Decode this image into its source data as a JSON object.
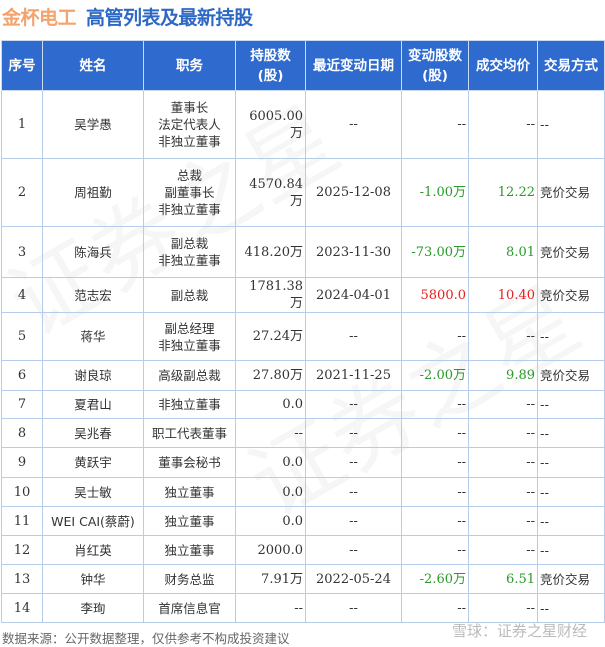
{
  "title": {
    "company": "金杯电工",
    "subject": "高管列表及最新持股"
  },
  "colors": {
    "header_bg": "#2f6bcf",
    "company": "#f4a36c",
    "subject": "#2d68c4",
    "negative": "#2a9a2a",
    "positive": "#e3211e"
  },
  "columns": [
    "序号",
    "姓名",
    "职务",
    "持股数\n(股)",
    "最近变动日期",
    "变动股数\n(股)",
    "成交均价",
    "交易方式"
  ],
  "rows": [
    {
      "no": "1",
      "name": "吴学愚",
      "roles": [
        "董事长",
        "法定代表人",
        "非独立董事"
      ],
      "shares": "6005.00万",
      "date": "--",
      "change": "--",
      "price": "--",
      "method": "--",
      "dir": ""
    },
    {
      "no": "2",
      "name": "周祖勤",
      "roles": [
        "总裁",
        "副董事长",
        "非独立董事"
      ],
      "shares": "4570.84万",
      "date": "2025-12-08",
      "change": "-1.00万",
      "price": "12.22",
      "method": "竞价交易",
      "dir": "green"
    },
    {
      "no": "3",
      "name": "陈海兵",
      "roles": [
        "副总裁",
        "非独立董事"
      ],
      "shares": "418.20万",
      "date": "2023-11-30",
      "change": "-73.00万",
      "price": "8.01",
      "method": "竞价交易",
      "dir": "green"
    },
    {
      "no": "4",
      "name": "范志宏",
      "roles": [
        "副总裁"
      ],
      "shares": "1781.38万",
      "date": "2024-04-01",
      "change": "5800.0",
      "price": "10.40",
      "method": "竞价交易",
      "dir": "red"
    },
    {
      "no": "5",
      "name": "蒋华",
      "roles": [
        "副总经理",
        "非独立董事"
      ],
      "shares": "27.24万",
      "date": "--",
      "change": "--",
      "price": "--",
      "method": "--",
      "dir": ""
    },
    {
      "no": "6",
      "name": "谢良琼",
      "roles": [
        "高级副总裁"
      ],
      "shares": "27.80万",
      "date": "2021-11-25",
      "change": "-2.00万",
      "price": "9.89",
      "method": "竞价交易",
      "dir": "green"
    },
    {
      "no": "7",
      "name": "夏君山",
      "roles": [
        "非独立董事"
      ],
      "shares": "0.0",
      "date": "--",
      "change": "--",
      "price": "--",
      "method": "--",
      "dir": ""
    },
    {
      "no": "8",
      "name": "吴兆春",
      "roles": [
        "职工代表董事"
      ],
      "shares": "--",
      "date": "--",
      "change": "--",
      "price": "--",
      "method": "--",
      "dir": ""
    },
    {
      "no": "9",
      "name": "黄跃宇",
      "roles": [
        "董事会秘书"
      ],
      "shares": "0.0",
      "date": "--",
      "change": "--",
      "price": "--",
      "method": "--",
      "dir": ""
    },
    {
      "no": "10",
      "name": "吴士敏",
      "roles": [
        "独立董事"
      ],
      "shares": "0.0",
      "date": "--",
      "change": "--",
      "price": "--",
      "method": "--",
      "dir": ""
    },
    {
      "no": "11",
      "name": "WEI CAI(蔡蔚)",
      "roles": [
        "独立董事"
      ],
      "shares": "0.0",
      "date": "--",
      "change": "--",
      "price": "--",
      "method": "--",
      "dir": ""
    },
    {
      "no": "12",
      "name": "肖红英",
      "roles": [
        "独立董事"
      ],
      "shares": "2000.0",
      "date": "--",
      "change": "--",
      "price": "--",
      "method": "--",
      "dir": ""
    },
    {
      "no": "13",
      "name": "钟华",
      "roles": [
        "财务总监"
      ],
      "shares": "7.91万",
      "date": "2022-05-24",
      "change": "-2.60万",
      "price": "6.51",
      "method": "竞价交易",
      "dir": "green"
    },
    {
      "no": "14",
      "name": "李珣",
      "roles": [
        "首席信息官"
      ],
      "shares": "--",
      "date": "--",
      "change": "--",
      "price": "--",
      "method": "--",
      "dir": ""
    }
  ],
  "footer": {
    "source": "数据来源：公开数据整理，仅供参考不构成投资建议",
    "watermark": "雪球：证券之星财经"
  }
}
